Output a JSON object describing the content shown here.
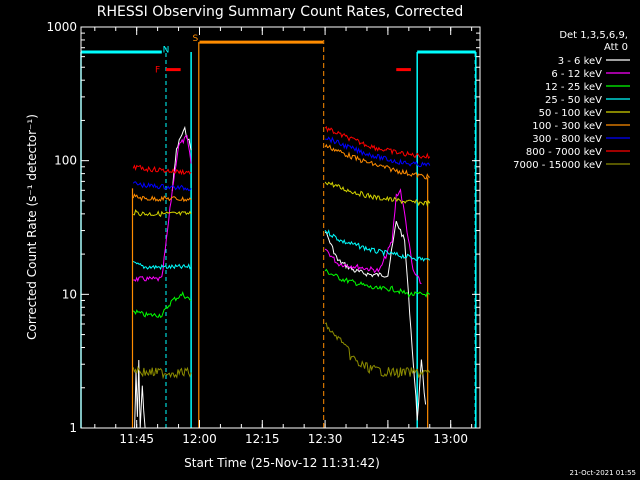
{
  "chart_data": {
    "type": "line",
    "title": "RHESSI Observing Summary Count Rates, Corrected",
    "xlabel": "Start Time (25-Nov-12 11:31:42)",
    "ylabel": "Corrected Count Rate (s⁻¹ detector⁻¹)",
    "y_scale": "log",
    "ylim": [
      1,
      1000
    ],
    "xlim": [
      "11:31:42",
      "13:07:00"
    ],
    "x_ticks": [
      "11:45",
      "12:00",
      "12:15",
      "12:30",
      "12:45",
      "13:00"
    ],
    "y_ticks": [
      "1",
      "10",
      "100",
      "1000"
    ],
    "legend_title_lines": [
      "Det 1,3,5,6,9,",
      "Att 0"
    ],
    "legend_position": "right",
    "series": [
      {
        "name": "3 - 6 keV",
        "color": "#ffffff",
        "segments": [
          [
            [
              "11:44:30",
              1.0
            ],
            [
              "11:44:50",
              2.5
            ],
            [
              "11:45:10",
              1.2
            ],
            [
              "11:45:30",
              3.0
            ],
            [
              "11:45:50",
              1.0
            ],
            [
              "11:46:20",
              2.0
            ],
            [
              "11:47:00",
              1.0
            ]
          ],
          [
            [
              "11:53:30",
              60
            ],
            [
              "11:54:30",
              120
            ],
            [
              "11:55:30",
              150
            ],
            [
              "11:56:30",
              170
            ],
            [
              "11:57:30",
              140
            ],
            [
              "11:58:00",
              120
            ]
          ],
          [
            [
              "12:30:00",
              30
            ],
            [
              "12:33:00",
              18
            ],
            [
              "12:37:00",
              15
            ],
            [
              "12:41:00",
              14
            ],
            [
              "12:45:00",
              14
            ],
            [
              "12:47:00",
              35
            ],
            [
              "12:48:00",
              30
            ],
            [
              "12:49:00",
              25
            ],
            [
              "12:52:00",
              1.2
            ],
            [
              "12:53:00",
              3
            ],
            [
              "12:54:00",
              1.5
            ]
          ]
        ]
      },
      {
        "name": "6 - 12 keV",
        "color": "#ff00ff",
        "segments": [
          [
            [
              "11:44:10",
              13
            ],
            [
              "11:47:30",
              13
            ],
            [
              "11:51:00",
              13
            ],
            [
              "11:53:30",
              60
            ],
            [
              "11:55:00",
              130
            ],
            [
              "11:57:00",
              150
            ],
            [
              "11:58:00",
              95
            ]
          ],
          [
            [
              "12:30:00",
              22
            ],
            [
              "12:33:00",
              17
            ],
            [
              "12:38:00",
              16
            ],
            [
              "12:43:00",
              15
            ],
            [
              "12:46:00",
              25
            ],
            [
              "12:47:00",
              55
            ],
            [
              "12:48:00",
              60
            ],
            [
              "12:49:00",
              40
            ],
            [
              "12:51:00",
              15
            ],
            [
              "12:53:00",
              12
            ]
          ]
        ]
      },
      {
        "name": "12 - 25 keV",
        "color": "#00ff00",
        "segments": [
          [
            [
              "11:44:10",
              7.5
            ],
            [
              "11:47:00",
              7
            ],
            [
              "11:51:00",
              7
            ],
            [
              "11:53:30",
              9
            ],
            [
              "11:56:00",
              10
            ],
            [
              "11:58:00",
              9
            ]
          ],
          [
            [
              "12:30:00",
              15
            ],
            [
              "12:34:00",
              13
            ],
            [
              "12:38:00",
              12
            ],
            [
              "12:42:00",
              11
            ],
            [
              "12:46:00",
              11
            ],
            [
              "12:50:00",
              10
            ],
            [
              "12:55:00",
              10
            ]
          ]
        ]
      },
      {
        "name": "25 - 50 keV",
        "color": "#00ffff",
        "segments": [
          [
            [
              "11:44:10",
              17
            ],
            [
              "11:47:00",
              16
            ],
            [
              "11:51:00",
              16
            ],
            [
              "11:54:00",
              16
            ],
            [
              "11:58:00",
              16
            ]
          ],
          [
            [
              "12:30:00",
              30
            ],
            [
              "12:34:00",
              25
            ],
            [
              "12:38:00",
              23
            ],
            [
              "12:42:00",
              21
            ],
            [
              "12:46:00",
              20
            ],
            [
              "12:50:00",
              19
            ],
            [
              "12:55:00",
              18
            ]
          ]
        ]
      },
      {
        "name": "50 - 100 keV",
        "color": "#d2d200",
        "segments": [
          [
            [
              "11:44:10",
              41
            ],
            [
              "11:47:00",
              40
            ],
            [
              "11:51:00",
              40
            ],
            [
              "11:54:00",
              40
            ],
            [
              "11:58:00",
              40
            ]
          ],
          [
            [
              "12:30:00",
              70
            ],
            [
              "12:34:00",
              62
            ],
            [
              "12:38:00",
              57
            ],
            [
              "12:42:00",
              53
            ],
            [
              "12:46:00",
              51
            ],
            [
              "12:50:00",
              49
            ],
            [
              "12:55:00",
              48
            ]
          ]
        ]
      },
      {
        "name": "100 - 300 keV",
        "color": "#ff8c00",
        "segments": [
          [
            [
              "11:44:10",
              54
            ],
            [
              "11:47:00",
              52
            ],
            [
              "11:51:00",
              52
            ],
            [
              "11:54:00",
              52
            ],
            [
              "11:58:00",
              51
            ]
          ],
          [
            [
              "12:30:00",
              130
            ],
            [
              "12:34:00",
              115
            ],
            [
              "12:38:00",
              102
            ],
            [
              "12:42:00",
              93
            ],
            [
              "12:46:00",
              86
            ],
            [
              "12:50:00",
              80
            ],
            [
              "12:55:00",
              75
            ]
          ]
        ]
      },
      {
        "name": "300 - 800 keV",
        "color": "#0000ff",
        "segments": [
          [
            [
              "11:44:10",
              68
            ],
            [
              "11:47:00",
              65
            ],
            [
              "11:51:00",
              64
            ],
            [
              "11:54:00",
              63
            ],
            [
              "11:58:00",
              62
            ]
          ],
          [
            [
              "12:30:00",
              150
            ],
            [
              "12:34:00",
              132
            ],
            [
              "12:38:00",
              118
            ],
            [
              "12:42:00",
              108
            ],
            [
              "12:46:00",
              100
            ],
            [
              "12:50:00",
              95
            ],
            [
              "12:55:00",
              92
            ]
          ]
        ]
      },
      {
        "name": "800 - 7000 keV",
        "color": "#ff0000",
        "segments": [
          [
            [
              "11:44:10",
              90
            ],
            [
              "11:47:00",
              87
            ],
            [
              "11:51:00",
              85
            ],
            [
              "11:54:00",
              83
            ],
            [
              "11:58:00",
              82
            ]
          ],
          [
            [
              "12:30:00",
              175
            ],
            [
              "12:34:00",
              155
            ],
            [
              "12:38:00",
              138
            ],
            [
              "12:42:00",
              125
            ],
            [
              "12:46:00",
              117
            ],
            [
              "12:50:00",
              111
            ],
            [
              "12:55:00",
              107
            ]
          ]
        ]
      },
      {
        "name": "7000 - 15000 keV",
        "color": "#8b8b00",
        "segments": [
          [
            [
              "11:44:10",
              2.8
            ],
            [
              "11:47:00",
              2.6
            ],
            [
              "11:51:00",
              2.6
            ],
            [
              "11:54:00",
              2.6
            ],
            [
              "11:58:00",
              2.6
            ]
          ],
          [
            [
              "12:30:00",
              6
            ],
            [
              "12:32:00",
              5
            ],
            [
              "12:34:00",
              4.5
            ],
            [
              "12:36:00",
              3.5
            ],
            [
              "12:38:00",
              3
            ],
            [
              "12:42:00",
              2.7
            ],
            [
              "12:46:00",
              2.6
            ],
            [
              "12:50:00",
              2.6
            ],
            [
              "12:55:00",
              2.6
            ]
          ]
        ]
      }
    ],
    "flag_bars": [
      {
        "label": "",
        "color": "#00ffff",
        "y": 650,
        "from": "11:31:42",
        "to": "11:51:00"
      },
      {
        "label": "N",
        "color": "#00ffff",
        "label_time": "11:52:00",
        "label_y": 680
      },
      {
        "label": "F",
        "color": "#ff0000",
        "y": 480,
        "from": "11:52:00",
        "to": "11:55:30",
        "label_time": "11:50:00"
      },
      {
        "label": "S",
        "color": "#ff8c00",
        "y": 770,
        "from": "12:00:00",
        "to": "12:29:30",
        "label_time": "11:59:00",
        "label_y": 830
      },
      {
        "label": "",
        "color": "#ff0000",
        "y": 480,
        "from": "12:47:00",
        "to": "12:50:30"
      },
      {
        "label": "",
        "color": "#00ffff",
        "y": 650,
        "from": "12:52:00",
        "to": "13:06:00"
      }
    ],
    "markers": {
      "night_solid": {
        "color": "#00ffff",
        "times": [
          "11:31:42",
          "11:58:00",
          "12:52:00",
          "13:06:00"
        ],
        "extents": [
          [
            1,
            650
          ],
          [
            1,
            650
          ],
          [
            1,
            650
          ],
          [
            1,
            650
          ]
        ]
      },
      "night_dashed": {
        "color": "#00ffff",
        "times": [
          "11:52:00"
        ]
      },
      "night_dashed_late": {
        "color": "#00ffff",
        "times": [
          "13:05:50"
        ]
      },
      "saa_solid": {
        "color": "#ff8c00",
        "times": [
          "11:44:00",
          "11:59:50",
          "12:54:30"
        ],
        "extents": [
          [
            1,
            62
          ],
          [
            1,
            770
          ],
          [
            1,
            75
          ]
        ]
      },
      "saa_dashed": {
        "color": "#ff8c00",
        "times": [
          "12:29:40"
        ]
      }
    }
  },
  "footer": {
    "timestamp": "21-Oct-2021 01:55"
  }
}
